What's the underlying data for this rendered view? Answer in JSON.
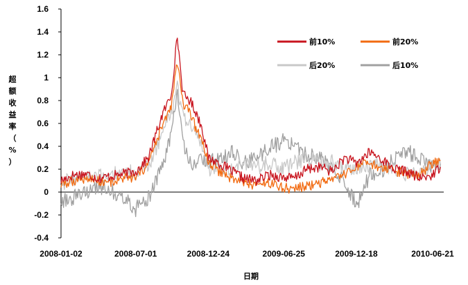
{
  "chart_data": {
    "type": "line",
    "xlabel": "日期",
    "ylabel": "超额收益率（%）",
    "ylim": [
      -0.4,
      1.6
    ],
    "yticks": [
      "-0.4",
      "-0.2",
      "0",
      "0.2",
      "0.4",
      "0.6",
      "0.8",
      "1",
      "1.2",
      "1.4",
      "1.6"
    ],
    "xticks": [
      "2008-01-02",
      "2008-07-01",
      "2008-12-24",
      "2009-06-25",
      "2009-12-18",
      "2010-06-21"
    ],
    "legend_position": "top-right",
    "grid": false,
    "series": [
      {
        "name": "前10%",
        "color": "#c8141e",
        "x": [
          "2008-01-02",
          "2008-02-01",
          "2008-03-03",
          "2008-04-01",
          "2008-05-02",
          "2008-06-02",
          "2008-07-01",
          "2008-08-01",
          "2008-09-01",
          "2008-09-25",
          "2008-10-10",
          "2008-10-24",
          "2008-11-10",
          "2008-11-24",
          "2008-12-10",
          "2008-12-24",
          "2009-01-20",
          "2009-02-20",
          "2009-03-20",
          "2009-04-20",
          "2009-05-20",
          "2009-06-25",
          "2009-07-20",
          "2009-08-20",
          "2009-09-20",
          "2009-10-20",
          "2009-11-20",
          "2009-12-18",
          "2010-01-20",
          "2010-02-20",
          "2010-03-20",
          "2010-04-20",
          "2010-05-20",
          "2010-06-21",
          "2010-07-10"
        ],
        "values": [
          0.1,
          0.15,
          0.16,
          0.12,
          0.14,
          0.16,
          0.18,
          0.3,
          0.65,
          0.85,
          1.36,
          0.85,
          0.8,
          0.7,
          0.55,
          0.3,
          0.25,
          0.18,
          0.12,
          0.1,
          0.15,
          0.13,
          0.12,
          0.2,
          0.22,
          0.18,
          0.3,
          0.25,
          0.35,
          0.28,
          0.2,
          0.18,
          0.12,
          0.15,
          0.22
        ]
      },
      {
        "name": "前20%",
        "color": "#f26a10",
        "x": [
          "2008-01-02",
          "2008-02-01",
          "2008-03-03",
          "2008-04-01",
          "2008-05-02",
          "2008-06-02",
          "2008-07-01",
          "2008-08-01",
          "2008-09-01",
          "2008-09-25",
          "2008-10-10",
          "2008-10-24",
          "2008-11-10",
          "2008-11-24",
          "2008-12-10",
          "2008-12-24",
          "2009-01-20",
          "2009-02-20",
          "2009-03-20",
          "2009-04-20",
          "2009-05-20",
          "2009-06-25",
          "2009-07-20",
          "2009-08-20",
          "2009-09-20",
          "2009-10-20",
          "2009-11-20",
          "2009-12-18",
          "2010-01-20",
          "2010-02-20",
          "2010-03-20",
          "2010-04-20",
          "2010-05-20",
          "2010-06-21",
          "2010-07-10"
        ],
        "values": [
          0.06,
          0.1,
          0.12,
          0.1,
          0.09,
          0.12,
          0.12,
          0.25,
          0.55,
          0.75,
          1.14,
          0.75,
          0.7,
          0.55,
          0.45,
          0.25,
          0.18,
          0.12,
          0.08,
          0.06,
          0.08,
          0.04,
          0.03,
          0.05,
          0.08,
          0.1,
          0.15,
          0.22,
          0.25,
          0.2,
          0.18,
          0.16,
          0.15,
          0.25,
          0.28
        ]
      },
      {
        "name": "后20%",
        "color": "#c8c8c8",
        "x": [
          "2008-01-02",
          "2008-02-01",
          "2008-03-03",
          "2008-04-01",
          "2008-05-02",
          "2008-06-02",
          "2008-07-01",
          "2008-08-01",
          "2008-09-01",
          "2008-09-25",
          "2008-10-10",
          "2008-10-24",
          "2008-11-10",
          "2008-11-24",
          "2008-12-10",
          "2008-12-24",
          "2009-01-20",
          "2009-02-20",
          "2009-03-20",
          "2009-04-20",
          "2009-05-20",
          "2009-06-25",
          "2009-07-20",
          "2009-08-20",
          "2009-09-20",
          "2009-10-20",
          "2009-11-20",
          "2009-12-18",
          "2010-01-20",
          "2010-02-20",
          "2010-03-20",
          "2010-04-20",
          "2010-05-20",
          "2010-06-21",
          "2010-07-10"
        ],
        "values": [
          0.08,
          0.12,
          0.14,
          0.13,
          0.15,
          0.18,
          0.17,
          0.22,
          0.5,
          0.7,
          0.92,
          0.65,
          0.6,
          0.5,
          0.4,
          0.2,
          0.2,
          0.22,
          0.25,
          0.22,
          0.26,
          0.2,
          0.25,
          0.3,
          0.25,
          0.28,
          0.22,
          0.2,
          0.25,
          0.22,
          0.2,
          0.15,
          0.18,
          0.22,
          0.25
        ]
      },
      {
        "name": "后10%",
        "color": "#a0a0a0",
        "x": [
          "2008-01-02",
          "2008-02-01",
          "2008-03-03",
          "2008-04-01",
          "2008-05-02",
          "2008-06-02",
          "2008-07-01",
          "2008-08-01",
          "2008-09-01",
          "2008-09-25",
          "2008-10-10",
          "2008-10-24",
          "2008-11-10",
          "2008-11-24",
          "2008-12-10",
          "2008-12-24",
          "2009-01-20",
          "2009-02-20",
          "2009-03-20",
          "2009-04-20",
          "2009-05-20",
          "2009-06-25",
          "2009-07-20",
          "2009-08-20",
          "2009-09-20",
          "2009-10-20",
          "2009-11-20",
          "2009-12-18",
          "2010-01-20",
          "2010-02-20",
          "2010-03-20",
          "2010-04-20",
          "2010-05-20",
          "2010-06-21",
          "2010-07-10"
        ],
        "values": [
          -0.08,
          -0.05,
          0.0,
          0.05,
          0.02,
          -0.05,
          -0.15,
          -0.05,
          0.2,
          0.5,
          0.88,
          0.4,
          0.25,
          0.25,
          0.3,
          0.25,
          0.3,
          0.35,
          0.25,
          0.3,
          0.38,
          0.45,
          0.4,
          0.32,
          0.3,
          0.2,
          0.1,
          -0.12,
          0.15,
          0.2,
          0.3,
          0.35,
          0.3,
          0.2,
          0.25
        ]
      }
    ]
  }
}
